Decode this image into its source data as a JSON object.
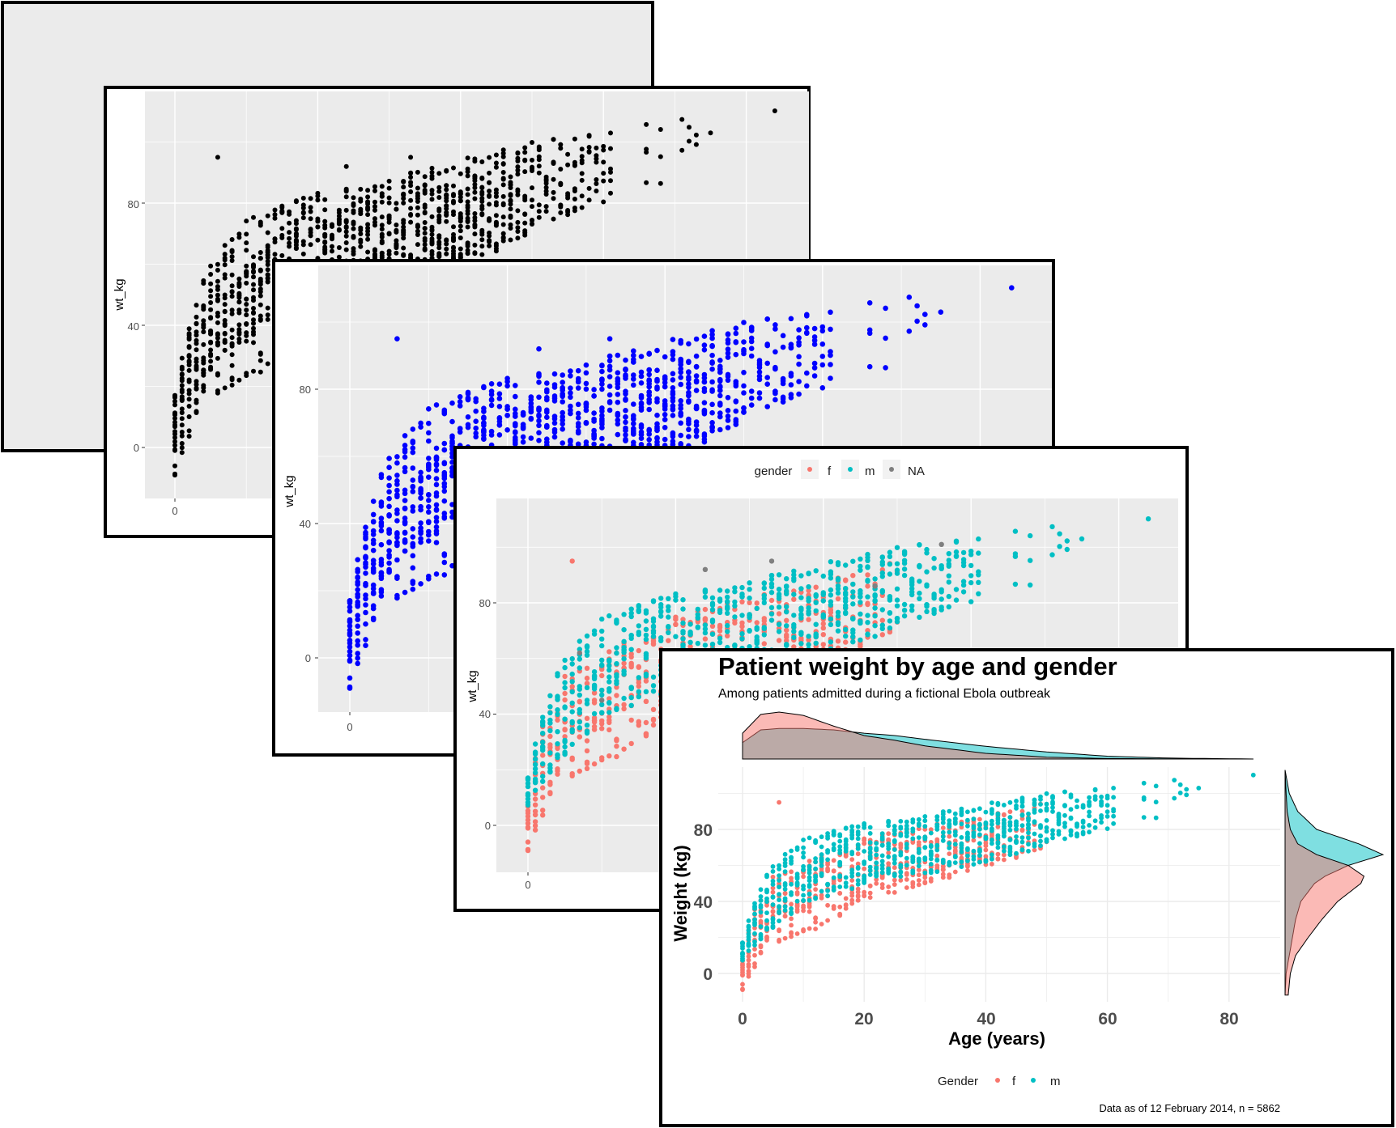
{
  "colors": {
    "f": "#F8766D",
    "m": "#00BFC4",
    "na": "#7F7F7F",
    "blue": "#0000FF",
    "black": "#000000",
    "panel_bg": "#EBEBEB"
  },
  "chart_data": [
    {
      "type": "scatter",
      "panel": "grey-background",
      "title": "",
      "xlabel": "",
      "ylabel": ""
    },
    {
      "type": "scatter",
      "panel": "black-points",
      "xlabel": "",
      "ylabel": "wt_kg",
      "x_ticks": [
        "0"
      ],
      "y_ticks": [
        "0",
        "40",
        "80"
      ],
      "xlim": [
        -3,
        88
      ],
      "ylim": [
        -17,
        117
      ],
      "point_color": "#000000"
    },
    {
      "type": "scatter",
      "panel": "blue-points",
      "xlabel": "",
      "ylabel": "wt_kg",
      "x_ticks": [
        "0"
      ],
      "y_ticks": [
        "0",
        "40",
        "80"
      ],
      "xlim": [
        -4,
        88
      ],
      "ylim": [
        -17,
        117
      ],
      "point_color": "#0000FF"
    },
    {
      "type": "scatter",
      "panel": "gender-colored",
      "xlabel": "",
      "ylabel": "wt_kg",
      "x_ticks": [
        "0"
      ],
      "y_ticks": [
        "0",
        "40",
        "80"
      ],
      "xlim": [
        -4,
        88
      ],
      "ylim": [
        -17,
        117
      ],
      "legend": {
        "title": "gender",
        "entries": [
          "f",
          "m",
          "NA"
        ],
        "placement": "top"
      }
    },
    {
      "type": "scatter",
      "panel": "final",
      "title": "Patient weight by age and gender",
      "subtitle": "Among patients admitted during a fictional Ebola outbreak",
      "xlabel": "Age (years)",
      "ylabel": "Weight (kg)",
      "x_ticks": [
        "0",
        "20",
        "40",
        "60",
        "80"
      ],
      "y_ticks": [
        "0",
        "40",
        "80"
      ],
      "xlim": [
        -4,
        88
      ],
      "ylim": [
        -17,
        117
      ],
      "legend": {
        "title": "Gender",
        "entries": [
          "f",
          "m"
        ],
        "placement": "bottom"
      },
      "caption": "Data as of 12 February 2014, n = 5862",
      "marginal_age_density": {
        "age": [
          0,
          3,
          6,
          10,
          15,
          20,
          25,
          30,
          40,
          50,
          60,
          70,
          84
        ],
        "f": [
          0.55,
          0.95,
          1.0,
          0.93,
          0.7,
          0.5,
          0.4,
          0.28,
          0.12,
          0.04,
          0.01,
          0.005,
          0
        ],
        "m": [
          0.35,
          0.62,
          0.65,
          0.65,
          0.62,
          0.55,
          0.5,
          0.42,
          0.27,
          0.15,
          0.06,
          0.02,
          0
        ]
      },
      "marginal_weight_density": {
        "weight": [
          -12,
          0,
          10,
          20,
          30,
          40,
          50,
          54,
          60,
          66,
          72,
          80,
          90,
          100,
          113
        ],
        "f": [
          0.03,
          0.05,
          0.1,
          0.22,
          0.35,
          0.5,
          0.72,
          0.75,
          0.6,
          0.3,
          0.12,
          0.05,
          0.02,
          0.01,
          0
        ],
        "m": [
          0,
          0.01,
          0.04,
          0.07,
          0.1,
          0.15,
          0.28,
          0.38,
          0.6,
          0.93,
          0.7,
          0.3,
          0.12,
          0.04,
          0
        ]
      }
    }
  ],
  "weight_envelope_by_age": {
    "f": {
      "age": [
        0,
        2,
        5,
        10,
        15,
        20,
        30,
        40,
        50
      ],
      "lo": [
        -12,
        3,
        15,
        20,
        30,
        40,
        50,
        58,
        70
      ],
      "hi": [
        10,
        40,
        55,
        62,
        68,
        75,
        82,
        88,
        95
      ]
    },
    "m": {
      "age": [
        0,
        2,
        5,
        10,
        15,
        20,
        30,
        40,
        50,
        60,
        70,
        84
      ],
      "lo": [
        5,
        15,
        25,
        38,
        42,
        50,
        55,
        62,
        70,
        80,
        88,
        110
      ],
      "hi": [
        18,
        45,
        62,
        75,
        80,
        84,
        88,
        95,
        100,
        103,
        108,
        113
      ]
    }
  }
}
